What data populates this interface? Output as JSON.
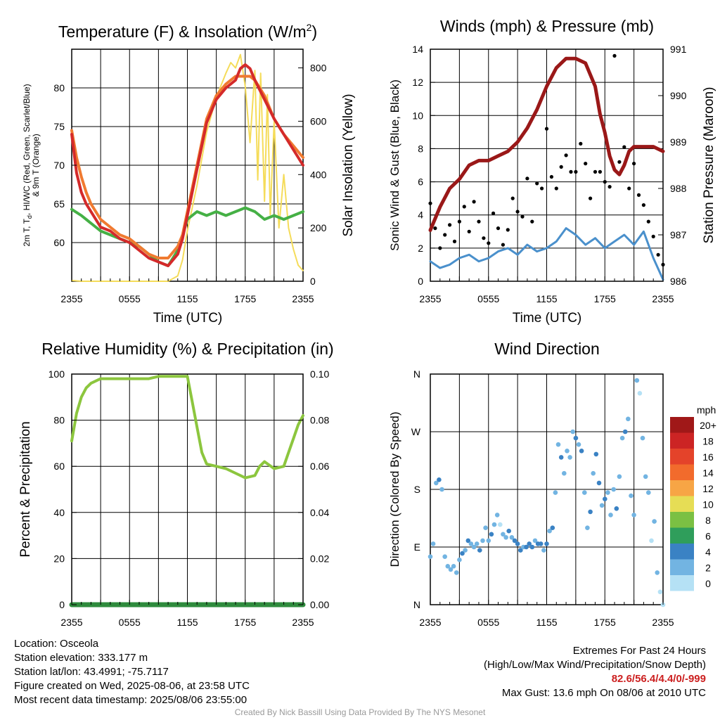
{
  "chart_data": [
    {
      "type": "line",
      "title": "Temperature (F) & Insolation (W/m",
      "title_sup": "2",
      "title_end": ")",
      "xlabel": "Time (UTC)",
      "ylabel_left": [
        "2m T, T",
        "d",
        ", HI/WC (Red, Green, Scarlet/Blue)",
        "& 9m T (Orange)"
      ],
      "ylabel_right": "Solar Insolation (Yellow)",
      "x_ticks": [
        "2355",
        "0555",
        "1155",
        "1755",
        "2355"
      ],
      "x_range_hours": [
        0,
        24
      ],
      "ylim_left": [
        55,
        85
      ],
      "yticks_left": [
        60,
        65,
        70,
        75,
        80
      ],
      "ylim_right": [
        0,
        870
      ],
      "yticks_right": [
        0,
        200,
        400,
        600,
        800
      ],
      "grid": true,
      "colors": {
        "temp2m": "#d42a2a",
        "dewpoint": "#45b045",
        "temp9m": "#f07a30",
        "solar": "#f5dc5a"
      },
      "series": [
        {
          "key": "temp9m",
          "axis": "left",
          "x": [
            0,
            0.5,
            1,
            1.5,
            2,
            3,
            4,
            5,
            6,
            7,
            8,
            9,
            10,
            11,
            11.5,
            12,
            13,
            14,
            15,
            16,
            17,
            18,
            18.5,
            19,
            20,
            21,
            22,
            23,
            24
          ],
          "y": [
            74.5,
            71,
            68.5,
            66.5,
            65,
            63,
            62,
            61,
            60.5,
            59.5,
            58.5,
            58,
            58,
            59.5,
            61,
            64,
            70,
            76,
            79,
            80.5,
            81.5,
            81.5,
            81.5,
            81,
            79,
            76,
            74,
            72.5,
            71
          ]
        },
        {
          "key": "temp2m",
          "axis": "left",
          "x": [
            0,
            0.5,
            1,
            1.5,
            2,
            3,
            4,
            5,
            6,
            7,
            8,
            9,
            10,
            11,
            11.5,
            12,
            13,
            14,
            15,
            16,
            17,
            17.5,
            18,
            18.5,
            19,
            20,
            21,
            22,
            23,
            24
          ],
          "y": [
            74,
            69,
            66.5,
            65,
            64,
            62,
            61.5,
            60.5,
            60,
            59,
            58,
            57.5,
            57,
            58.5,
            60.5,
            63.5,
            69.5,
            75.5,
            78.5,
            80,
            81,
            82.5,
            83,
            82.5,
            81,
            78.5,
            76,
            74,
            72,
            70
          ]
        },
        {
          "key": "dewpoint",
          "axis": "left",
          "x": [
            0,
            1,
            2,
            3,
            4,
            5,
            6,
            7,
            8,
            9,
            10,
            11,
            12,
            13,
            14,
            15,
            16,
            17,
            18,
            19,
            20,
            21,
            22,
            23,
            24
          ],
          "y": [
            64.3,
            63.5,
            62.5,
            61.5,
            61,
            60.5,
            60,
            59.5,
            58.5,
            57.5,
            57,
            59,
            63,
            64,
            63.5,
            64,
            63.5,
            64,
            64.5,
            64,
            63,
            63.5,
            63,
            63.5,
            64
          ]
        },
        {
          "key": "solar",
          "axis": "right",
          "x": [
            0,
            1,
            2,
            3,
            4,
            5,
            6,
            7,
            8,
            9,
            10,
            11,
            11.5,
            12,
            13,
            14,
            15,
            16,
            16.5,
            17,
            17.5,
            18,
            18.5,
            19,
            19.3,
            19.6,
            20,
            20.3,
            20.6,
            21,
            21.5,
            22,
            22.5,
            23,
            23.5,
            24
          ],
          "y": [
            3,
            0,
            0,
            0,
            0,
            0,
            0,
            0,
            0,
            0,
            0,
            20,
            80,
            190,
            360,
            560,
            690,
            780,
            820,
            800,
            850,
            730,
            520,
            790,
            380,
            780,
            300,
            700,
            250,
            600,
            200,
            400,
            200,
            120,
            60,
            40
          ]
        }
      ]
    },
    {
      "type": "line",
      "title": "Winds (mph) & Pressure (mb)",
      "xlabel": "Time (UTC)",
      "ylabel_left": "Sonic Wind & Gust (Blue, Black)",
      "ylabel_right": "Station Pressure (Maroon)",
      "x_ticks": [
        "2355",
        "0555",
        "1155",
        "1755",
        "2355"
      ],
      "ylim_left": [
        0,
        14
      ],
      "yticks_left": [
        0,
        2,
        4,
        6,
        8,
        10,
        12,
        14
      ],
      "ylim_right": [
        986,
        991
      ],
      "yticks_right": [
        986,
        987,
        988,
        989,
        990,
        991
      ],
      "grid": true,
      "colors": {
        "wind": "#4a90cc",
        "gust": "#000000",
        "pressure": "#9a1818"
      },
      "series": [
        {
          "key": "pressure",
          "axis": "right",
          "x": [
            0,
            1,
            2,
            3,
            4,
            5,
            6,
            7,
            8,
            9,
            10,
            11,
            12,
            13,
            14,
            15,
            16,
            17,
            17.5,
            18,
            18.5,
            19,
            19.5,
            20,
            20.5,
            21,
            22,
            23,
            24
          ],
          "y": [
            987.1,
            987.6,
            988.0,
            988.2,
            988.5,
            988.6,
            988.6,
            988.7,
            988.8,
            989.0,
            989.3,
            989.7,
            990.2,
            990.6,
            990.8,
            990.8,
            990.7,
            990.2,
            989.6,
            989.2,
            988.7,
            988.4,
            988.3,
            988.5,
            988.8,
            988.9,
            988.9,
            988.9,
            988.8
          ]
        },
        {
          "key": "wind",
          "axis": "left",
          "x": [
            0,
            1,
            2,
            3,
            4,
            5,
            6,
            7,
            8,
            9,
            10,
            11,
            12,
            13,
            14,
            15,
            16,
            17,
            18,
            19,
            20,
            21,
            22,
            23,
            24
          ],
          "y": [
            1.2,
            0.8,
            1.0,
            1.4,
            1.6,
            1.2,
            1.4,
            1.8,
            2.0,
            1.6,
            2.2,
            1.8,
            2.0,
            2.4,
            3.2,
            2.8,
            2.2,
            2.6,
            2.0,
            2.4,
            2.8,
            2.2,
            3.0,
            1.4,
            0.1
          ]
        },
        {
          "key": "gust",
          "axis": "left",
          "marker": "dot",
          "x": [
            0,
            0.5,
            1,
            1.5,
            2,
            2.5,
            3,
            3.5,
            4,
            4.5,
            5,
            5.5,
            6,
            6.5,
            7,
            7.5,
            8,
            8.5,
            9,
            9.5,
            10,
            10.5,
            11,
            11.5,
            12,
            12.5,
            13,
            13.5,
            14,
            14.5,
            15,
            15.5,
            16,
            16.5,
            17,
            17.5,
            18,
            18.5,
            19,
            19.5,
            20,
            20.5,
            21,
            21.5,
            22,
            22.5,
            23,
            23.5,
            24
          ],
          "y": [
            4.7,
            3.2,
            2.0,
            2.8,
            3.4,
            2.4,
            3.6,
            4.5,
            3.0,
            4.8,
            3.6,
            2.6,
            2.3,
            4.1,
            3.2,
            2.2,
            3.1,
            5.0,
            4.2,
            3.9,
            6.2,
            3.6,
            5.9,
            5.6,
            9.2,
            6.3,
            5.6,
            6.9,
            7.6,
            6.6,
            6.6,
            8.3,
            7.1,
            5.0,
            6.6,
            6.6,
            6.0,
            5.7,
            13.6,
            7.2,
            8.1,
            5.6,
            7.1,
            5.2,
            4.6,
            3.6,
            2.7,
            1.6,
            1.0
          ]
        }
      ]
    },
    {
      "type": "line",
      "title": "Relative Humidity (%) & Precipitation (in)",
      "ylabel_left": "Percent & Precipitation",
      "x_ticks": [
        "2355",
        "0555",
        "1155",
        "1755",
        "2355"
      ],
      "ylim_left": [
        0,
        100
      ],
      "yticks_left": [
        0,
        20,
        40,
        60,
        80,
        100
      ],
      "ylim_right": [
        0,
        0.1
      ],
      "yticks_right": [
        "0.00",
        "0.02",
        "0.04",
        "0.06",
        "0.08",
        "0.10"
      ],
      "grid": true,
      "colors": {
        "rh": "#8cc63e",
        "precip": "#2e8b3d"
      },
      "series": [
        {
          "key": "rh",
          "axis": "left",
          "x": [
            0,
            0.5,
            1,
            1.5,
            2,
            3,
            4,
            5,
            6,
            7,
            8,
            9,
            10,
            11,
            12,
            12.5,
            13,
            13.5,
            14,
            15,
            16,
            17,
            18,
            19,
            19.5,
            20,
            21,
            22,
            22.5,
            23,
            23.5,
            24
          ],
          "y": [
            71,
            83,
            90,
            94,
            96,
            98,
            98,
            98,
            98,
            98,
            98,
            99,
            99,
            99,
            99,
            88,
            77,
            66,
            61,
            60,
            59,
            57,
            55,
            56,
            60,
            62,
            59,
            60,
            66,
            72,
            78,
            82
          ]
        },
        {
          "key": "precip",
          "axis": "right",
          "x": [
            0,
            24
          ],
          "y": [
            0,
            0
          ]
        }
      ]
    },
    {
      "type": "scatter",
      "title": "Wind Direction",
      "ylabel_left": "Direction (Colored By Speed)",
      "x_ticks": [
        "2355",
        "0555",
        "1155",
        "1755",
        "2355"
      ],
      "y_ticks": [
        "N",
        "E",
        "S",
        "W",
        "N"
      ],
      "ylim_degrees": [
        0,
        360
      ],
      "grid": true,
      "colorbar": {
        "unit": "mph",
        "labels": [
          "20+",
          "18",
          "16",
          "14",
          "12",
          "10",
          "8",
          "6",
          "4",
          "2",
          "0"
        ],
        "colors": [
          "#a01818",
          "#cc2424",
          "#e4432a",
          "#f26b2c",
          "#f7a545",
          "#e6dd55",
          "#7bc043",
          "#2f9e5b",
          "#3a82c4",
          "#72b4e2",
          "#b5e1f5"
        ]
      },
      "points": {
        "x": [
          0,
          0.3,
          0.6,
          0.9,
          1.2,
          1.5,
          1.8,
          2.1,
          2.4,
          2.7,
          3.0,
          3.3,
          3.6,
          3.9,
          4.2,
          4.5,
          4.8,
          5.1,
          5.4,
          5.7,
          6.0,
          6.3,
          6.6,
          6.9,
          7.2,
          7.5,
          7.8,
          8.1,
          8.4,
          8.7,
          9.0,
          9.3,
          9.6,
          9.9,
          10.2,
          10.5,
          10.8,
          11.1,
          11.4,
          11.7,
          12.0,
          12.3,
          12.6,
          12.9,
          13.2,
          13.5,
          13.8,
          14.1,
          14.4,
          14.7,
          15.0,
          15.3,
          15.6,
          15.9,
          16.2,
          16.5,
          16.8,
          17.1,
          17.4,
          17.7,
          18.0,
          18.3,
          18.6,
          18.9,
          19.2,
          19.5,
          19.8,
          20.1,
          20.4,
          20.7,
          21.0,
          21.3,
          21.6,
          21.9,
          22.2,
          22.5,
          22.8,
          23.1,
          23.4,
          23.7,
          24.0
        ],
        "y": [
          75,
          95,
          190,
          195,
          180,
          75,
          60,
          55,
          60,
          50,
          70,
          80,
          85,
          100,
          95,
          90,
          95,
          85,
          100,
          120,
          100,
          110,
          125,
          140,
          125,
          110,
          105,
          115,
          105,
          100,
          95,
          85,
          90,
          90,
          95,
          90,
          100,
          95,
          95,
          85,
          95,
          115,
          120,
          175,
          250,
          230,
          205,
          240,
          230,
          270,
          260,
          250,
          240,
          175,
          120,
          145,
          205,
          235,
          190,
          155,
          165,
          175,
          140,
          180,
          150,
          200,
          260,
          270,
          290,
          170,
          140,
          350,
          330,
          260,
          200,
          175,
          100,
          130,
          50,
          20,
          0
        ],
        "speed": [
          2,
          1,
          2,
          3,
          1,
          2,
          1,
          1,
          2,
          1,
          2,
          3,
          2,
          3,
          2,
          1,
          2,
          3,
          2,
          1,
          2,
          3,
          2,
          1,
          0,
          1,
          2,
          3,
          2,
          3,
          3,
          4,
          2,
          3,
          3,
          3,
          2,
          3,
          4,
          2,
          3,
          2,
          3,
          2,
          2,
          3,
          2,
          2,
          2,
          2,
          3,
          2,
          3,
          2,
          2,
          3,
          2,
          3,
          3,
          2,
          3,
          2,
          2,
          2,
          3,
          1,
          2,
          3,
          2,
          2,
          2,
          1,
          0,
          1,
          2,
          1,
          0,
          1,
          1,
          0,
          0
        ]
      }
    }
  ],
  "footer": {
    "location": "Location: Osceola",
    "elevation": "Station elevation: 333.177 m",
    "latlon": "Station lat/lon: 43.4991; -75.7117",
    "created": "Figure created on Wed, 2025-08-06, at 23:58 UTC",
    "recent": "Most recent data timestamp: 2025/08/06 23:55:00",
    "extremes_title": "Extremes For Past 24 Hours",
    "extremes_sub": "(High/Low/Max Wind/Precipitation/Snow Depth)",
    "extremes_values": "82.6/56.4/4.4/0/-999",
    "max_gust": "Max Gust: 13.6 mph On 08/06 at 2010 UTC",
    "credit": "Created By Nick Bassill Using Data Provided By The NYS Mesonet"
  }
}
